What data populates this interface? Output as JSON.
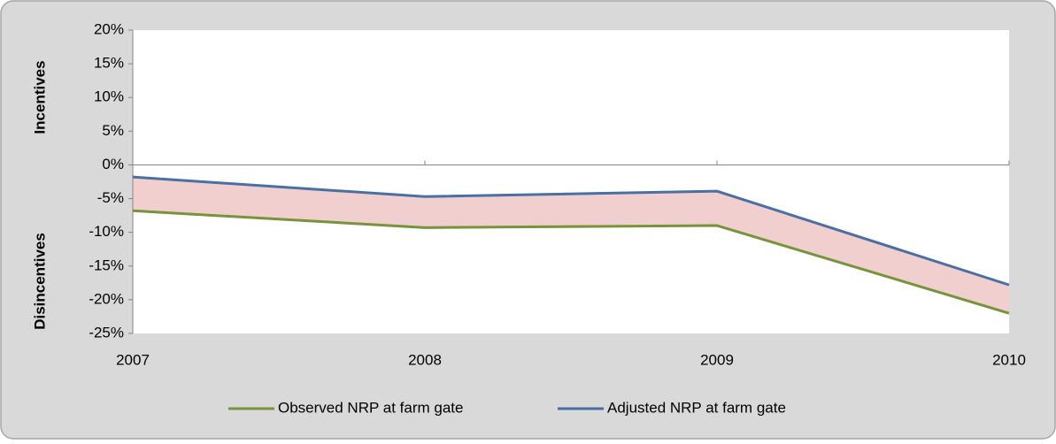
{
  "chart_data": {
    "type": "line",
    "ylabel_top": "Incentives",
    "ylabel_bottom": "Disincentives",
    "x": [
      2007,
      2008,
      2009,
      2010
    ],
    "xlim": [
      2007,
      2010
    ],
    "xticks": [
      2007,
      2008,
      2009,
      2010
    ],
    "ylim": [
      -25,
      20
    ],
    "yticks": [
      {
        "value": -25,
        "label": "-25%"
      },
      {
        "value": -20,
        "label": "-20%"
      },
      {
        "value": -15,
        "label": "-15%"
      },
      {
        "value": -10,
        "label": "-10%"
      },
      {
        "value": -5,
        "label": "-5%"
      },
      {
        "value": 0,
        "label": "0%"
      },
      {
        "value": 5,
        "label": "5%"
      },
      {
        "value": 10,
        "label": "10%"
      },
      {
        "value": 15,
        "label": "15%"
      },
      {
        "value": 20,
        "label": "20%"
      }
    ],
    "fill_between_color": "#f2cfcf",
    "legend": "bottom",
    "series": [
      {
        "name": "Observed NRP at farm gate",
        "color": "#77933c",
        "values": [
          -6.8,
          -9.3,
          -9.0,
          -22.0
        ]
      },
      {
        "name": "Adjusted NRP at farm gate",
        "color": "#4a6fa5",
        "values": [
          -1.8,
          -4.7,
          -3.9,
          -17.8
        ]
      }
    ]
  }
}
